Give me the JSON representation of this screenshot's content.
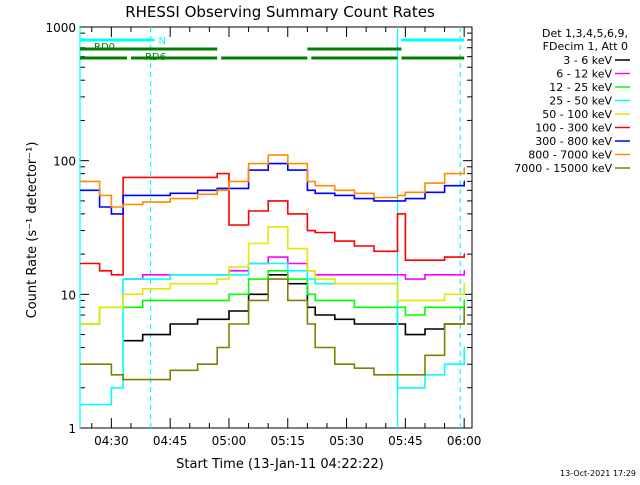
{
  "chart_data": {
    "type": "line",
    "title": "RHESSI Observing Summary Count Rates",
    "xlabel": "Start Time (13-Jan-11 04:22:22)",
    "ylabel": "Count Rate (s⁻¹ detector⁻¹)",
    "y_scale": "log",
    "ylim": [
      1,
      1000
    ],
    "y_ticks": [
      {
        "value": 1,
        "label": "1"
      },
      {
        "value": 10,
        "label": "10"
      },
      {
        "value": 100,
        "label": "100"
      },
      {
        "value": 1000,
        "label": "1000"
      }
    ],
    "xlim": [
      "04:22",
      "06:02"
    ],
    "x_ticks": [
      "04:30",
      "04:45",
      "05:00",
      "05:15",
      "05:30",
      "05:45",
      "06:00"
    ],
    "grid": false,
    "legend_position": "right",
    "legend_header": [
      "Det 1,3,4,5,6,9,",
      "FDecim 1, Att 0"
    ],
    "timestamp": "13-Oct-2021 17:29",
    "flags": [
      {
        "label": "N",
        "color": "#00ffff",
        "segments": [
          [
            "04:22",
            "04:41"
          ],
          [
            "05:44",
            "06:00"
          ]
        ]
      },
      {
        "label": "RD0",
        "color": "#007f00",
        "segments": [
          [
            "04:22",
            "04:57"
          ],
          [
            "05:20",
            "05:44"
          ]
        ]
      },
      {
        "label": "RD6",
        "color": "#007f00",
        "segments": [
          [
            "04:22",
            "04:34"
          ],
          [
            "04:35",
            "04:57"
          ],
          [
            "04:58",
            "05:20"
          ],
          [
            "05:21",
            "05:43"
          ],
          [
            "05:44",
            "06:00"
          ]
        ]
      }
    ],
    "night_lines": [
      {
        "time": "04:22",
        "color": "#00ffff",
        "style": "solid"
      },
      {
        "time": "04:40",
        "color": "#00ffff",
        "style": "dashed"
      },
      {
        "time": "05:43",
        "color": "#00ffff",
        "style": "solid"
      },
      {
        "time": "05:59",
        "color": "#00ffff",
        "style": "dashed"
      }
    ],
    "x": [
      "04:22",
      "04:27",
      "04:30",
      "04:33",
      "04:38",
      "04:45",
      "04:52",
      "04:57",
      "05:00",
      "05:05",
      "05:10",
      "05:15",
      "05:20",
      "05:22",
      "05:27",
      "05:32",
      "05:37",
      "05:43",
      "05:45",
      "05:50",
      "05:55",
      "06:00"
    ],
    "series": [
      {
        "name": "3 - 6 keV",
        "color": "#000000",
        "values": [
          null,
          null,
          null,
          4.5,
          5,
          6,
          6.5,
          6.5,
          7.5,
          10,
          14,
          12,
          8,
          7,
          6.5,
          6,
          6,
          6,
          5,
          5.5,
          6,
          6.5
        ]
      },
      {
        "name": "6 - 12 keV",
        "color": "#ff00ff",
        "values": [
          null,
          null,
          null,
          13,
          14,
          14,
          14,
          14,
          15,
          17,
          19,
          17,
          15,
          14,
          14,
          14,
          14,
          14,
          13,
          14,
          14,
          15
        ]
      },
      {
        "name": "12 - 25 keV",
        "color": "#00ff00",
        "values": [
          6,
          8,
          8,
          8,
          9,
          9,
          9,
          9,
          10,
          13,
          15,
          13,
          10,
          9,
          9,
          8,
          8,
          8,
          7,
          8,
          8,
          9
        ]
      },
      {
        "name": "25 - 50 keV",
        "color": "#00ffff",
        "values": [
          1.5,
          1.5,
          2,
          13,
          13,
          14,
          14,
          14,
          14,
          17,
          17,
          15,
          13,
          12,
          12,
          12,
          12,
          2,
          2,
          2.5,
          3,
          4
        ]
      },
      {
        "name": "50 - 100 keV",
        "color": "#e6e600",
        "values": [
          6,
          8,
          8,
          10,
          11,
          12,
          12,
          13,
          16,
          24,
          32,
          22,
          15,
          13,
          12,
          12,
          12,
          9,
          9,
          9,
          10,
          12
        ]
      },
      {
        "name": "100 - 300 keV",
        "color": "#ff0000",
        "values": [
          17,
          15,
          14,
          75,
          75,
          75,
          75,
          80,
          33,
          42,
          50,
          40,
          30,
          29,
          25,
          23,
          21,
          40,
          18,
          18,
          19,
          20
        ]
      },
      {
        "name": "300 - 800 keV",
        "color": "#0000ff",
        "values": [
          60,
          45,
          40,
          55,
          55,
          57,
          60,
          62,
          62,
          85,
          95,
          85,
          60,
          57,
          55,
          52,
          50,
          50,
          52,
          58,
          65,
          70
        ]
      },
      {
        "name": "800 - 7000 keV",
        "color": "#ff8c00",
        "values": [
          70,
          55,
          45,
          47,
          49,
          52,
          56,
          60,
          70,
          95,
          110,
          95,
          70,
          65,
          60,
          57,
          53,
          55,
          58,
          68,
          80,
          88
        ]
      },
      {
        "name": "7000 - 15000 keV",
        "color": "#808000",
        "values": [
          3,
          3,
          2.5,
          2.3,
          2.3,
          2.7,
          3,
          4,
          6,
          9,
          13,
          9,
          6,
          4,
          3,
          2.8,
          2.5,
          2.5,
          2.5,
          3.5,
          6,
          8
        ]
      }
    ]
  }
}
